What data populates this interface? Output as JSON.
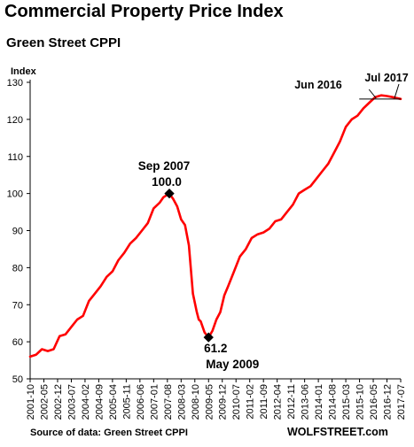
{
  "header": {
    "title": "Commercial Property Price Index",
    "subtitle": "Green Street CPPI"
  },
  "footer": {
    "source": "Source of data: Green Street CPPI",
    "brand": "WOLFSTREET.com"
  },
  "chart_data": {
    "type": "line",
    "title": "Commercial Property Price Index",
    "subtitle": "Green Street CPPI",
    "ylabel": "Index",
    "xlabel": "",
    "ylim": [
      50,
      130
    ],
    "yticks": [
      50,
      60,
      70,
      80,
      90,
      100,
      110,
      120,
      130
    ],
    "xlim": [
      "2001-10",
      "2017-07"
    ],
    "xticks": [
      "2001-10",
      "2002-05",
      "2002-12",
      "2003-07",
      "2004-02",
      "2004-09",
      "2005-04",
      "2005-11",
      "2006-06",
      "2007-01",
      "2007-08",
      "2008-03",
      "2008-10",
      "2009-05",
      "2009-12",
      "2010-07",
      "2011-02",
      "2011-09",
      "2012-04",
      "2012-11",
      "2013-06",
      "2014-01",
      "2014-08",
      "2015-03",
      "2015-10",
      "2016-05",
      "2016-12",
      "2017-07"
    ],
    "grid": false,
    "line_color": "#ff0000",
    "series": [
      {
        "x": [
          "2001-10",
          "2002-01",
          "2002-04",
          "2002-07",
          "2002-10",
          "2003-01",
          "2003-04",
          "2003-07",
          "2003-10",
          "2004-01",
          "2004-04",
          "2004-07",
          "2004-10",
          "2005-01",
          "2005-04",
          "2005-07",
          "2005-10",
          "2006-01",
          "2006-04",
          "2006-07",
          "2006-10",
          "2007-01",
          "2007-04",
          "2007-06",
          "2007-09",
          "2007-11",
          "2008-01",
          "2008-03",
          "2008-05",
          "2008-07",
          "2008-09",
          "2008-11",
          "2008-12",
          "2009-01",
          "2009-03",
          "2009-05",
          "2009-07",
          "2009-09",
          "2009-11",
          "2010-01",
          "2010-03",
          "2010-06",
          "2010-09",
          "2010-12",
          "2011-03",
          "2011-06",
          "2011-09",
          "2011-12",
          "2012-03",
          "2012-06",
          "2012-09",
          "2012-12",
          "2013-03",
          "2013-06",
          "2013-09",
          "2013-12",
          "2014-03",
          "2014-06",
          "2014-09",
          "2014-12",
          "2015-03",
          "2015-06",
          "2015-09",
          "2015-12",
          "2016-03",
          "2016-06",
          "2016-09",
          "2016-12",
          "2017-03",
          "2017-07"
        ],
        "values": [
          56,
          56.5,
          58,
          57.5,
          58,
          61.5,
          62,
          64,
          66,
          67,
          71,
          73,
          75,
          77.5,
          79,
          82,
          84,
          86.5,
          88,
          90,
          92,
          96,
          97.5,
          99,
          100,
          98.5,
          96.5,
          93,
          91.5,
          86,
          73,
          68,
          66,
          65.5,
          62.5,
          61.2,
          63,
          66,
          68,
          72.5,
          75,
          79,
          83,
          85,
          88,
          89,
          89.5,
          90.5,
          92.5,
          93,
          95,
          97,
          100,
          101,
          102,
          104,
          106,
          108,
          111,
          114,
          118,
          120,
          121,
          123,
          124.5,
          126,
          126.5,
          126.3,
          126,
          125.5
        ]
      }
    ],
    "annotations": [
      {
        "label": "Sep 2007",
        "value_label": "100.0",
        "x": "2007-09",
        "y": 100.0
      },
      {
        "label": "May 2009",
        "value_label": "61.2",
        "x": "2009-05",
        "y": 61.2
      },
      {
        "label": "Jun 2016",
        "x": "2016-06",
        "y": 126.0
      },
      {
        "label": "Jul 2017",
        "x": "2017-07",
        "y": 125.5
      }
    ]
  }
}
